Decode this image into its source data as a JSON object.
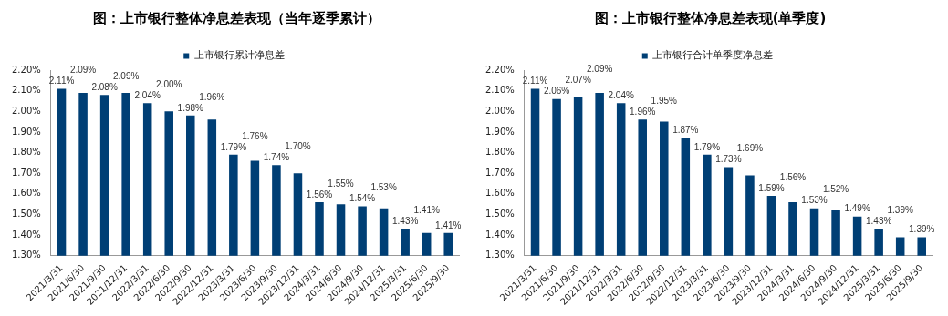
{
  "chart_data": [
    {
      "type": "bar",
      "title": "图：上市银行整体净息差表现（当年逐季累计）",
      "categories": [
        "2021/3/31",
        "2021/6/30",
        "2021/9/30",
        "2021/12/31",
        "2022/3/31",
        "2022/6/30",
        "2022/9/30",
        "2022/12/31",
        "2023/3/31",
        "2023/6/30",
        "2023/9/30",
        "2023/12/31",
        "2024/3/31",
        "2024/6/30",
        "2024/9/30",
        "2024/12/31",
        "2025/3/31",
        "2025/6/30",
        "2025/9/30"
      ],
      "series": [
        {
          "name": "上市银行累计净息差",
          "color": "#003f75",
          "values": [
            2.11,
            2.09,
            2.08,
            2.09,
            2.04,
            2.0,
            1.98,
            1.96,
            1.79,
            1.76,
            1.74,
            1.7,
            1.56,
            1.55,
            1.54,
            1.53,
            1.43,
            1.41,
            1.41
          ],
          "value_labels": [
            "2.11%",
            "2.09%",
            "2.08%",
            "2.09%",
            "2.04%",
            "2.00%",
            "1.98%",
            "1.96%",
            "1.79%",
            "1.76%",
            "1.74%",
            "1.70%",
            "1.56%",
            "1.55%",
            "1.54%",
            "1.53%",
            "1.43%",
            "1.41%",
            "1.41%"
          ]
        }
      ],
      "ylim": [
        1.3,
        2.2
      ],
      "yticks": [
        {
          "value": 1.3,
          "label": "1.30%"
        },
        {
          "value": 1.4,
          "label": "1.40%"
        },
        {
          "value": 1.5,
          "label": "1.50%"
        },
        {
          "value": 1.6,
          "label": "1.60%"
        },
        {
          "value": 1.7,
          "label": "1.70%"
        },
        {
          "value": 1.8,
          "label": "1.80%"
        },
        {
          "value": 1.9,
          "label": "1.90%"
        },
        {
          "value": 2.0,
          "label": "2.00%"
        },
        {
          "value": 2.1,
          "label": "2.10%"
        },
        {
          "value": 2.2,
          "label": "2.20%"
        }
      ],
      "grid": false,
      "legend": "top"
    },
    {
      "type": "bar",
      "title": "图：上市银行整体净息差表现(单季度)",
      "categories": [
        "2021/3/31",
        "2021/6/30",
        "2021/9/30",
        "2021/12/31",
        "2022/3/31",
        "2022/6/30",
        "2022/9/30",
        "2022/12/31",
        "2023/3/31",
        "2023/6/30",
        "2023/9/30",
        "2023/12/31",
        "2024/3/31",
        "2024/6/30",
        "2024/9/30",
        "2024/12/31",
        "2025/3/31",
        "2025/6/30",
        "2025/9/30"
      ],
      "series": [
        {
          "name": "上市银行合计单季度净息差",
          "color": "#003f75",
          "values": [
            2.11,
            2.06,
            2.07,
            2.09,
            2.04,
            1.96,
            1.95,
            1.87,
            1.79,
            1.73,
            1.69,
            1.59,
            1.56,
            1.53,
            1.52,
            1.49,
            1.43,
            1.39,
            1.39
          ],
          "value_labels": [
            "2.11%",
            "2.06%",
            "2.07%",
            "2.09%",
            "2.04%",
            "1.96%",
            "1.95%",
            "1.87%",
            "1.79%",
            "1.73%",
            "1.69%",
            "1.59%",
            "1.56%",
            "1.53%",
            "1.52%",
            "1.49%",
            "1.43%",
            "1.39%",
            "1.39%"
          ]
        }
      ],
      "ylim": [
        1.3,
        2.2
      ],
      "yticks": [
        {
          "value": 1.3,
          "label": "1.30%"
        },
        {
          "value": 1.4,
          "label": "1.40%"
        },
        {
          "value": 1.5,
          "label": "1.50%"
        },
        {
          "value": 1.6,
          "label": "1.60%"
        },
        {
          "value": 1.7,
          "label": "1.70%"
        },
        {
          "value": 1.8,
          "label": "1.80%"
        },
        {
          "value": 1.9,
          "label": "1.90%"
        },
        {
          "value": 2.0,
          "label": "2.00%"
        },
        {
          "value": 2.1,
          "label": "2.10%"
        },
        {
          "value": 2.2,
          "label": "2.20%"
        }
      ],
      "grid": false,
      "legend": "top"
    }
  ]
}
